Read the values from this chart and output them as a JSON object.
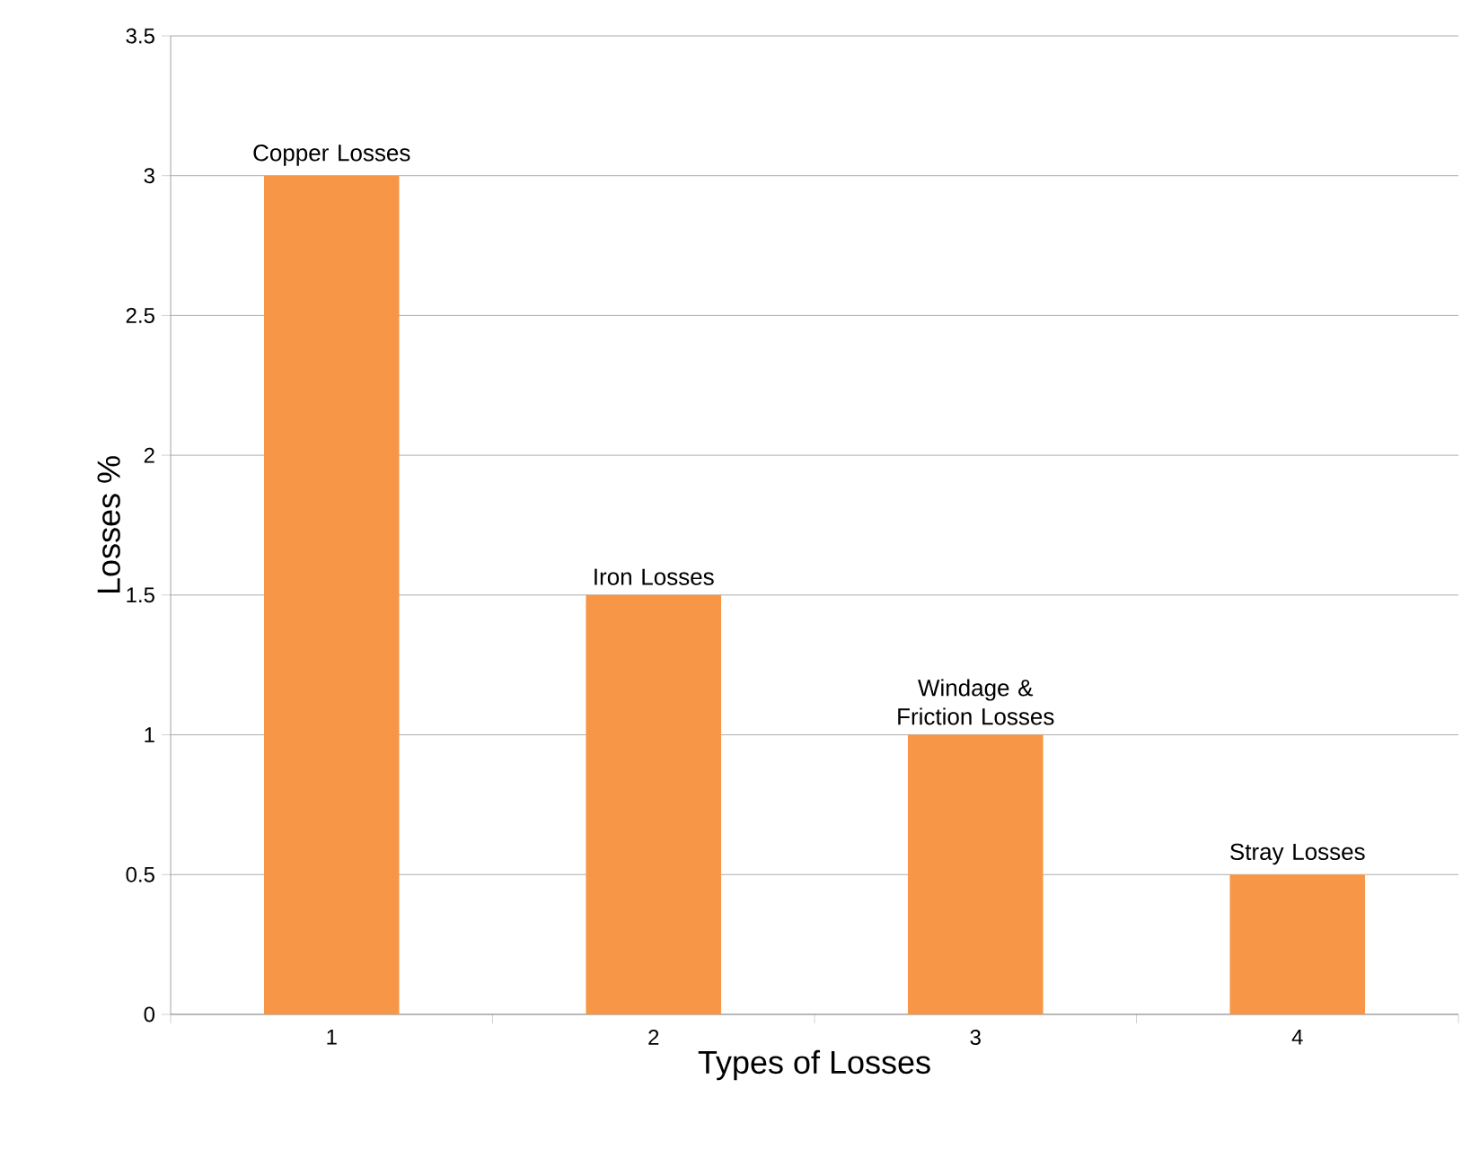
{
  "chart_data": {
    "type": "bar",
    "xlabel": "Types of Losses",
    "ylabel": "Losses %",
    "categories": [
      "1",
      "2",
      "3",
      "4"
    ],
    "values": [
      3,
      1.5,
      1,
      0.5
    ],
    "color": "#f79646",
    "ylim": [
      0,
      3.5
    ],
    "yticks": [
      0,
      0.5,
      1,
      1.5,
      2,
      2.5,
      3,
      3.5
    ],
    "grid": "y",
    "annotations": [
      {
        "text": "Copper Losses",
        "x": "1",
        "y": 3
      },
      {
        "text": "Iron Losses",
        "x": "2",
        "y": 1.5
      },
      {
        "text": "Windage & Friction Losses",
        "x": "3",
        "y": 1
      },
      {
        "text": "Stray Losses",
        "x": "4",
        "y": 0.5
      }
    ]
  }
}
